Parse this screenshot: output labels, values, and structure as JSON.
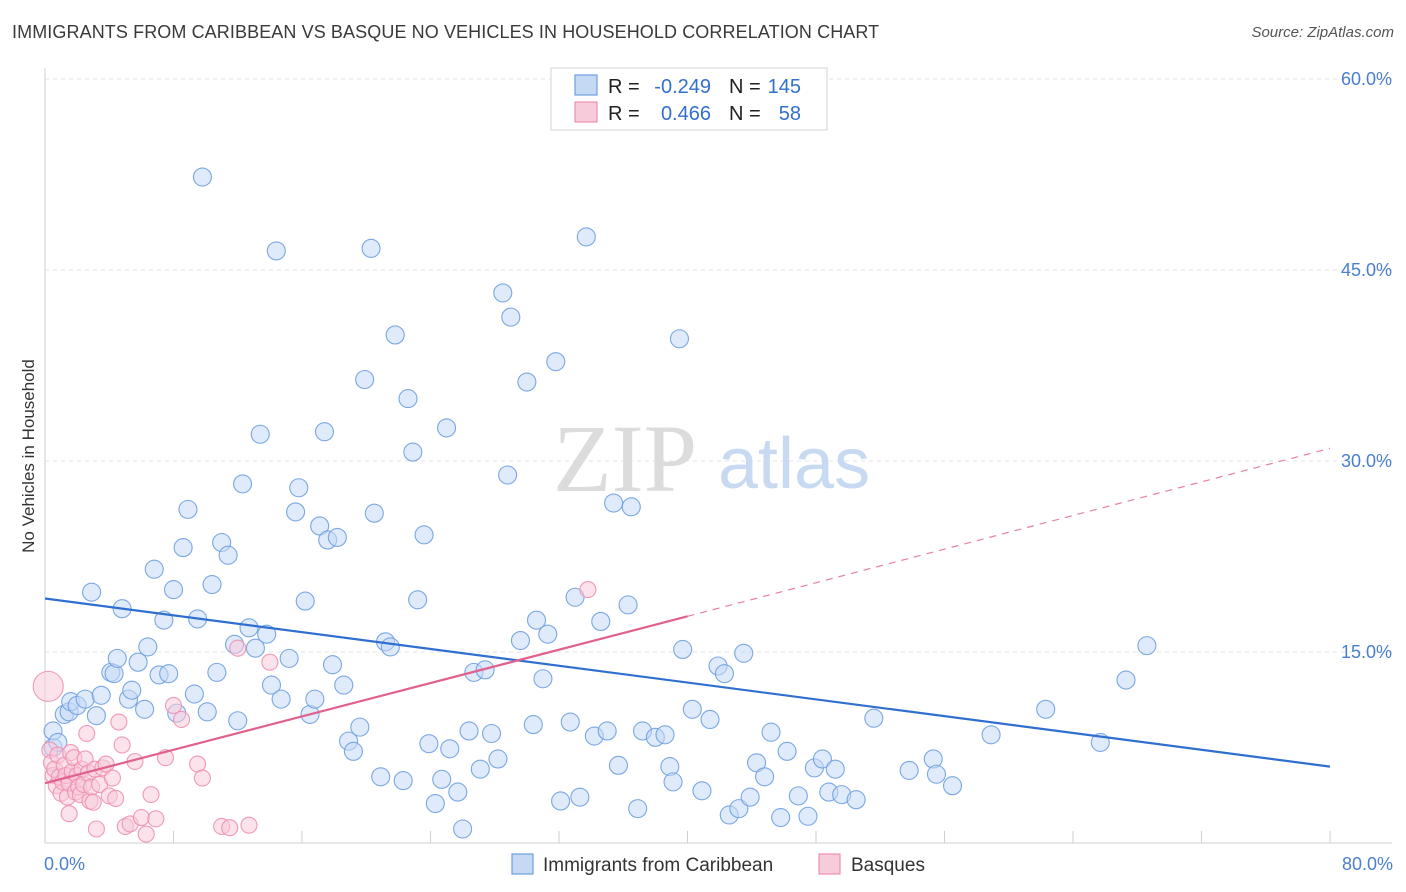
{
  "title": "IMMIGRANTS FROM CARIBBEAN VS BASQUE NO VEHICLES IN HOUSEHOLD CORRELATION CHART",
  "source": "Source: ZipAtlas.com",
  "colors": {
    "series1": "#6d9fe0",
    "series1_fill": "#c5d9f5",
    "series1_line": "#2f6fcf",
    "series2": "#ee8fb0",
    "series2_fill": "#f8cbda",
    "series2_line": "#e0608e",
    "tick": "#4a7fcf",
    "grid": "#e3e3e3"
  },
  "watermark": {
    "zip": "ZIP",
    "atlas": "atlas"
  },
  "stats_legend": [
    {
      "r_label": "R =",
      "r_value": "-0.249",
      "n_label": "N =",
      "n_value": "145"
    },
    {
      "r_label": "R =",
      "r_value": "0.466",
      "n_label": "N =",
      "n_value": "58"
    }
  ],
  "chart_data": {
    "type": "scatter",
    "title": "IMMIGRANTS FROM CARIBBEAN VS BASQUE NO VEHICLES IN HOUSEHOLD CORRELATION CHART",
    "xlabel": "",
    "ylabel": "No Vehicles in Household",
    "xlim": [
      0,
      80
    ],
    "ylim": [
      0,
      60
    ],
    "x_tick_labels": [
      "0.0%",
      "80.0%"
    ],
    "y_ticks": [
      15,
      30,
      45,
      60
    ],
    "y_tick_labels": [
      "15.0%",
      "30.0%",
      "45.0%",
      "60.0%"
    ],
    "grid": true,
    "legend_position": "bottom",
    "series": [
      {
        "name": "Immigrants from Caribbean",
        "r": -0.249,
        "n": 145,
        "trend": {
          "x": [
            0,
            80
          ],
          "y": [
            19.2,
            6.0
          ],
          "style": "solid"
        },
        "points": [
          [
            0.5,
            7.5
          ],
          [
            0.5,
            8.8
          ],
          [
            0.8,
            7.9
          ],
          [
            1.2,
            10.1
          ],
          [
            1.5,
            10.3
          ],
          [
            1.6,
            11.1
          ],
          [
            2.0,
            10.8
          ],
          [
            2.5,
            11.3
          ],
          [
            2.9,
            19.7
          ],
          [
            3.2,
            10.0
          ],
          [
            3.5,
            11.6
          ],
          [
            4.1,
            13.4
          ],
          [
            4.3,
            13.3
          ],
          [
            4.5,
            14.5
          ],
          [
            4.8,
            18.4
          ],
          [
            5.2,
            11.3
          ],
          [
            5.4,
            12.0
          ],
          [
            5.8,
            14.2
          ],
          [
            6.2,
            10.5
          ],
          [
            6.4,
            15.4
          ],
          [
            6.8,
            21.5
          ],
          [
            7.1,
            13.2
          ],
          [
            7.4,
            17.5
          ],
          [
            7.7,
            13.3
          ],
          [
            8.0,
            19.9
          ],
          [
            8.2,
            10.2
          ],
          [
            8.6,
            23.2
          ],
          [
            8.9,
            26.2
          ],
          [
            9.3,
            11.7
          ],
          [
            9.5,
            17.6
          ],
          [
            9.8,
            52.3
          ],
          [
            10.1,
            10.3
          ],
          [
            10.4,
            20.3
          ],
          [
            10.7,
            13.4
          ],
          [
            11.0,
            23.6
          ],
          [
            11.4,
            22.6
          ],
          [
            11.8,
            15.6
          ],
          [
            12.0,
            9.6
          ],
          [
            12.3,
            28.2
          ],
          [
            12.7,
            16.9
          ],
          [
            13.1,
            15.3
          ],
          [
            13.4,
            32.1
          ],
          [
            13.8,
            16.4
          ],
          [
            14.1,
            12.4
          ],
          [
            14.4,
            46.5
          ],
          [
            14.7,
            11.3
          ],
          [
            15.2,
            14.5
          ],
          [
            15.6,
            26.0
          ],
          [
            15.8,
            27.9
          ],
          [
            16.2,
            19.0
          ],
          [
            16.5,
            10.1
          ],
          [
            16.8,
            11.3
          ],
          [
            17.1,
            24.9
          ],
          [
            17.4,
            32.3
          ],
          [
            17.6,
            23.8
          ],
          [
            17.9,
            14.0
          ],
          [
            18.2,
            24.0
          ],
          [
            18.6,
            12.4
          ],
          [
            18.9,
            8.0
          ],
          [
            19.2,
            7.2
          ],
          [
            19.6,
            9.1
          ],
          [
            19.9,
            36.4
          ],
          [
            20.3,
            46.7
          ],
          [
            20.5,
            25.9
          ],
          [
            20.9,
            5.2
          ],
          [
            21.2,
            15.8
          ],
          [
            21.5,
            15.4
          ],
          [
            21.8,
            39.9
          ],
          [
            22.3,
            4.9
          ],
          [
            22.6,
            34.9
          ],
          [
            22.9,
            30.7
          ],
          [
            23.2,
            19.1
          ],
          [
            23.6,
            24.2
          ],
          [
            23.9,
            7.8
          ],
          [
            24.3,
            3.1
          ],
          [
            24.7,
            5.0
          ],
          [
            25.0,
            32.6
          ],
          [
            25.2,
            7.4
          ],
          [
            25.7,
            4.0
          ],
          [
            26.0,
            1.1
          ],
          [
            26.4,
            8.8
          ],
          [
            26.7,
            13.4
          ],
          [
            27.1,
            5.8
          ],
          [
            27.4,
            13.6
          ],
          [
            27.8,
            8.6
          ],
          [
            28.2,
            6.6
          ],
          [
            28.5,
            43.2
          ],
          [
            28.8,
            28.9
          ],
          [
            29.0,
            41.3
          ],
          [
            29.6,
            15.9
          ],
          [
            30.0,
            36.2
          ],
          [
            30.4,
            9.3
          ],
          [
            30.6,
            17.5
          ],
          [
            31.0,
            12.9
          ],
          [
            31.3,
            16.4
          ],
          [
            31.8,
            37.8
          ],
          [
            32.1,
            3.3
          ],
          [
            32.7,
            9.5
          ],
          [
            33.0,
            19.3
          ],
          [
            33.3,
            3.6
          ],
          [
            33.7,
            47.6
          ],
          [
            34.2,
            8.4
          ],
          [
            34.6,
            17.4
          ],
          [
            35.0,
            8.8
          ],
          [
            35.4,
            26.7
          ],
          [
            35.7,
            6.1
          ],
          [
            36.3,
            18.7
          ],
          [
            36.5,
            26.4
          ],
          [
            36.9,
            2.7
          ],
          [
            37.2,
            8.8
          ],
          [
            38.0,
            8.3
          ],
          [
            38.6,
            8.5
          ],
          [
            38.9,
            6.0
          ],
          [
            39.1,
            4.8
          ],
          [
            39.5,
            39.6
          ],
          [
            39.7,
            15.2
          ],
          [
            40.3,
            10.5
          ],
          [
            40.9,
            4.1
          ],
          [
            41.4,
            9.7
          ],
          [
            41.9,
            13.9
          ],
          [
            42.3,
            13.3
          ],
          [
            42.6,
            2.2
          ],
          [
            43.2,
            2.7
          ],
          [
            43.5,
            14.9
          ],
          [
            43.9,
            3.6
          ],
          [
            44.3,
            6.3
          ],
          [
            44.8,
            5.2
          ],
          [
            45.2,
            8.7
          ],
          [
            45.8,
            2.0
          ],
          [
            46.2,
            7.2
          ],
          [
            46.9,
            3.7
          ],
          [
            47.5,
            2.1
          ],
          [
            47.9,
            5.9
          ],
          [
            48.4,
            6.6
          ],
          [
            48.8,
            4.0
          ],
          [
            49.2,
            5.8
          ],
          [
            49.6,
            3.8
          ],
          [
            50.5,
            3.4
          ],
          [
            51.6,
            9.8
          ],
          [
            53.8,
            5.7
          ],
          [
            55.3,
            6.6
          ],
          [
            55.5,
            5.4
          ],
          [
            56.5,
            4.5
          ],
          [
            58.9,
            8.5
          ],
          [
            62.3,
            10.5
          ],
          [
            65.7,
            7.9
          ],
          [
            67.3,
            12.8
          ],
          [
            68.6,
            15.5
          ]
        ]
      },
      {
        "name": "Basques",
        "r": 0.466,
        "n": 58,
        "trend": {
          "x": [
            0,
            40
          ],
          "y": [
            4.7,
            17.8
          ],
          "style": "solid",
          "extension": {
            "x": [
              40,
              80
            ],
            "y": [
              17.8,
              31.0
            ],
            "style": "dashed"
          }
        },
        "points": [
          [
            0.2,
            12.3
          ],
          [
            0.3,
            7.3
          ],
          [
            0.4,
            6.3
          ],
          [
            0.5,
            5.3
          ],
          [
            0.6,
            5.8
          ],
          [
            0.7,
            4.5
          ],
          [
            0.8,
            6.9
          ],
          [
            0.9,
            5.2
          ],
          [
            1.0,
            3.9
          ],
          [
            1.1,
            4.8
          ],
          [
            1.2,
            6.1
          ],
          [
            1.3,
            5.3
          ],
          [
            1.4,
            3.6
          ],
          [
            1.5,
            4.7
          ],
          [
            1.6,
            7.1
          ],
          [
            1.7,
            5.6
          ],
          [
            1.8,
            6.7
          ],
          [
            1.9,
            4.0
          ],
          [
            2.0,
            5.3
          ],
          [
            2.1,
            4.4
          ],
          [
            2.2,
            3.8
          ],
          [
            2.3,
            5.8
          ],
          [
            2.4,
            4.6
          ],
          [
            2.5,
            6.6
          ],
          [
            2.6,
            8.6
          ],
          [
            2.7,
            5.5
          ],
          [
            2.8,
            3.3
          ],
          [
            2.9,
            4.4
          ],
          [
            3.0,
            3.2
          ],
          [
            3.1,
            5.8
          ],
          [
            3.2,
            1.1
          ],
          [
            3.4,
            4.6
          ],
          [
            3.6,
            5.9
          ],
          [
            3.8,
            6.2
          ],
          [
            4.0,
            3.7
          ],
          [
            4.2,
            5.1
          ],
          [
            4.4,
            3.5
          ],
          [
            4.6,
            9.5
          ],
          [
            4.8,
            7.7
          ],
          [
            5.0,
            1.3
          ],
          [
            5.3,
            1.5
          ],
          [
            5.6,
            6.4
          ],
          [
            6.0,
            2.0
          ],
          [
            6.3,
            0.7
          ],
          [
            6.6,
            3.8
          ],
          [
            6.9,
            1.9
          ],
          [
            7.5,
            6.7
          ],
          [
            8.0,
            10.8
          ],
          [
            8.5,
            9.7
          ],
          [
            9.5,
            6.2
          ],
          [
            9.8,
            5.1
          ],
          [
            11.0,
            1.3
          ],
          [
            11.5,
            1.2
          ],
          [
            12.0,
            15.3
          ],
          [
            12.7,
            1.4
          ],
          [
            14.0,
            14.2
          ],
          [
            33.8,
            19.9
          ],
          [
            1.5,
            2.3
          ]
        ]
      }
    ]
  }
}
